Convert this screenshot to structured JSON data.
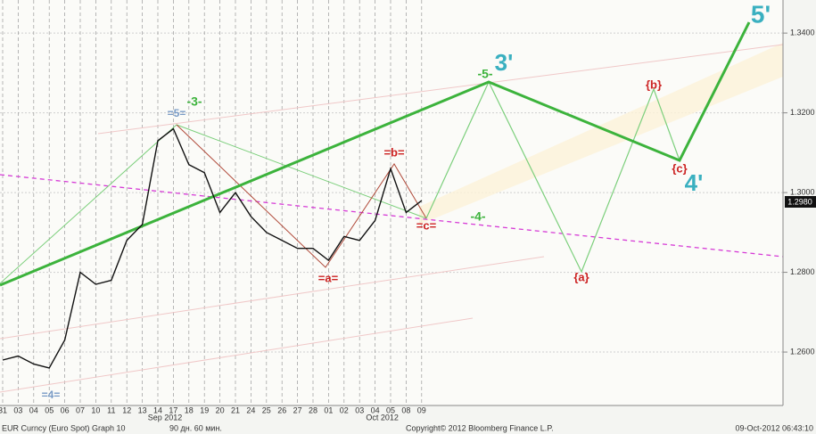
{
  "chart_data": {
    "type": "line",
    "categories": [
      "31",
      "03",
      "04",
      "05",
      "06",
      "07",
      "10",
      "11",
      "12",
      "13",
      "14",
      "17",
      "18",
      "19",
      "20",
      "21",
      "24",
      "25",
      "26",
      "27",
      "28",
      "01",
      "02",
      "03",
      "04",
      "05",
      "08",
      "09"
    ],
    "month_labels": [
      {
        "label": "Sep 2012",
        "index": 10
      },
      {
        "label": "Oct 2012",
        "index": 24
      }
    ],
    "series": [
      {
        "name": "EUR Curncy (Euro Spot)",
        "color": "#111111",
        "values": [
          1.258,
          1.259,
          1.257,
          1.256,
          1.263,
          1.28,
          1.277,
          1.278,
          1.288,
          1.292,
          1.313,
          1.316,
          1.307,
          1.305,
          1.295,
          1.3,
          1.294,
          1.29,
          1.288,
          1.286,
          1.286,
          1.283,
          1.289,
          1.288,
          1.293,
          1.306,
          1.295,
          1.298
        ]
      }
    ],
    "ylim": [
      1.2466,
      1.3483
    ],
    "yticks": [
      {
        "value": 1.26,
        "label": "1.2600"
      },
      {
        "value": 1.28,
        "label": "1.2800"
      },
      {
        "value": 1.3,
        "label": "1.3000"
      },
      {
        "value": 1.32,
        "label": "1.3200"
      },
      {
        "value": 1.34,
        "label": "1.3400"
      }
    ],
    "last_price_label": "1.2980",
    "annotations": [
      {
        "text": "=5=",
        "color": "#7a9cc6"
      },
      {
        "text": "-3-",
        "color": "#3cb33c"
      },
      {
        "text": "=4=",
        "color": "#7a9cc6"
      },
      {
        "text": "=b=",
        "color": "#cc2222"
      },
      {
        "text": "=a=",
        "color": "#cc2222"
      },
      {
        "text": "=c=",
        "color": "#cc2222"
      },
      {
        "text": "-4-",
        "color": "#3cb33c"
      },
      {
        "text": "-5-",
        "color": "#3cb33c"
      },
      {
        "text": "3'",
        "color": "#3ab0c0"
      },
      {
        "text": "{b}",
        "color": "#cc2222"
      },
      {
        "text": "{c}",
        "color": "#cc2222"
      },
      {
        "text": "{a}",
        "color": "#cc2222"
      },
      {
        "text": "4'",
        "color": "#3ab0c0"
      },
      {
        "text": "5'",
        "color": "#3ab0c0"
      }
    ],
    "footer": {
      "security": "EUR Curncy (Euro Spot) Graph 10",
      "period": "90 дн. 60 мин.",
      "copyright": "Copyright© 2012 Bloomberg Finance L.P.",
      "timestamp": "09-Oct-2012 06:43:10"
    }
  }
}
